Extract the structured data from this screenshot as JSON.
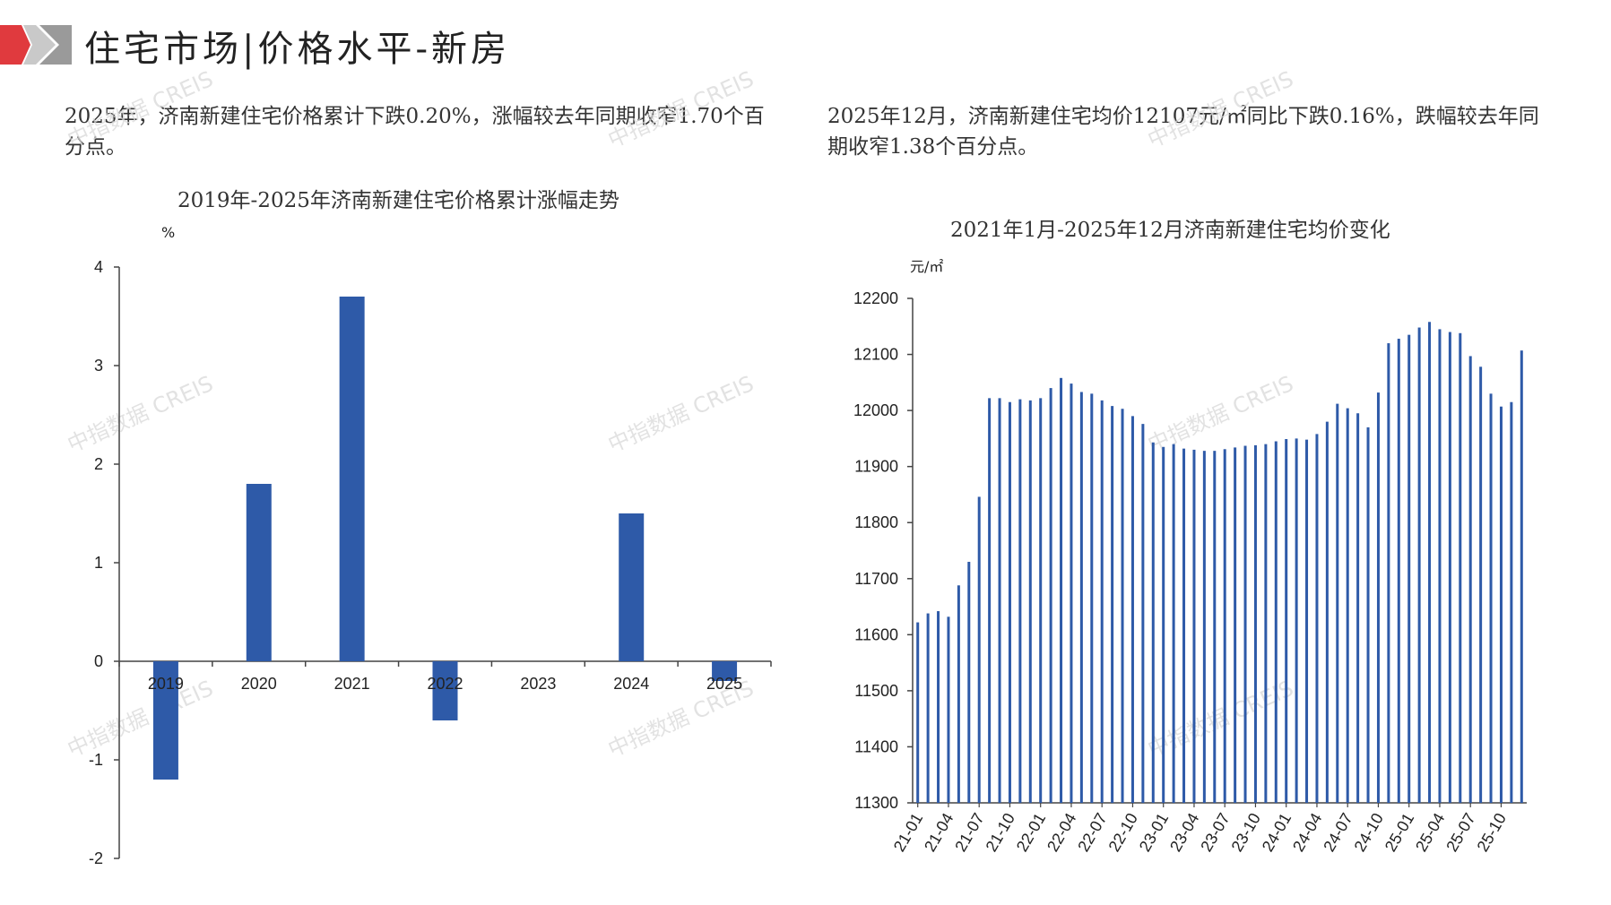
{
  "header": {
    "title": "住宅市场|价格水平-新房",
    "accent_color": "#e03a3e"
  },
  "summary_left": "2025年，济南新建住宅价格累计下跌0.20%，涨幅较去年同期收窄1.70个百分点。",
  "summary_right": "2025年12月，济南新建住宅均价12107元/㎡同比下跌0.16%，跌幅较去年同期收窄1.38个百分点。",
  "watermark": "中指数据 CREIS",
  "chart_data": [
    {
      "type": "bar",
      "title": "2019年-2025年济南新建住宅价格累计涨幅走势",
      "ylabel": "%",
      "ylim": [
        -2,
        4
      ],
      "yticks": [
        -2,
        -1,
        0,
        1,
        2,
        3,
        4
      ],
      "categories": [
        "2019",
        "2020",
        "2021",
        "2022",
        "2023",
        "2024",
        "2025"
      ],
      "values": [
        -1.2,
        1.8,
        3.7,
        -0.6,
        0,
        1.5,
        -0.2
      ],
      "color": "#2e5aa8",
      "grid": false
    },
    {
      "type": "bar",
      "title": "2021年1月-2025年12月济南新建住宅均价变化",
      "ylabel": "元/㎡",
      "ylim": [
        11300,
        12200
      ],
      "yticks": [
        11300,
        11400,
        11500,
        11600,
        11700,
        11800,
        11900,
        12000,
        12100,
        12200
      ],
      "xtick_labels": [
        "21-01",
        "21-04",
        "21-07",
        "21-10",
        "22-01",
        "22-04",
        "22-07",
        "22-10",
        "23-01",
        "23-04",
        "23-07",
        "23-10",
        "24-01",
        "24-04",
        "24-07",
        "24-10",
        "25-01",
        "25-04",
        "25-07",
        "25-10"
      ],
      "values": [
        11622,
        11638,
        11642,
        11632,
        11688,
        11730,
        11846,
        12022,
        12022,
        12015,
        12020,
        12018,
        12022,
        12040,
        12058,
        12048,
        12033,
        12030,
        12018,
        12008,
        12003,
        11990,
        11976,
        11943,
        11935,
        11940,
        11932,
        11930,
        11928,
        11928,
        11931,
        11934,
        11937,
        11938,
        11940,
        11945,
        11949,
        11950,
        11948,
        11958,
        11980,
        12012,
        12004,
        11995,
        11970,
        12032,
        12120,
        12128,
        12135,
        12148,
        12158,
        12145,
        12140,
        12138,
        12097,
        12078,
        12030,
        12007,
        12015,
        12107
      ],
      "color": "#2e5aa8",
      "grid": false
    }
  ]
}
